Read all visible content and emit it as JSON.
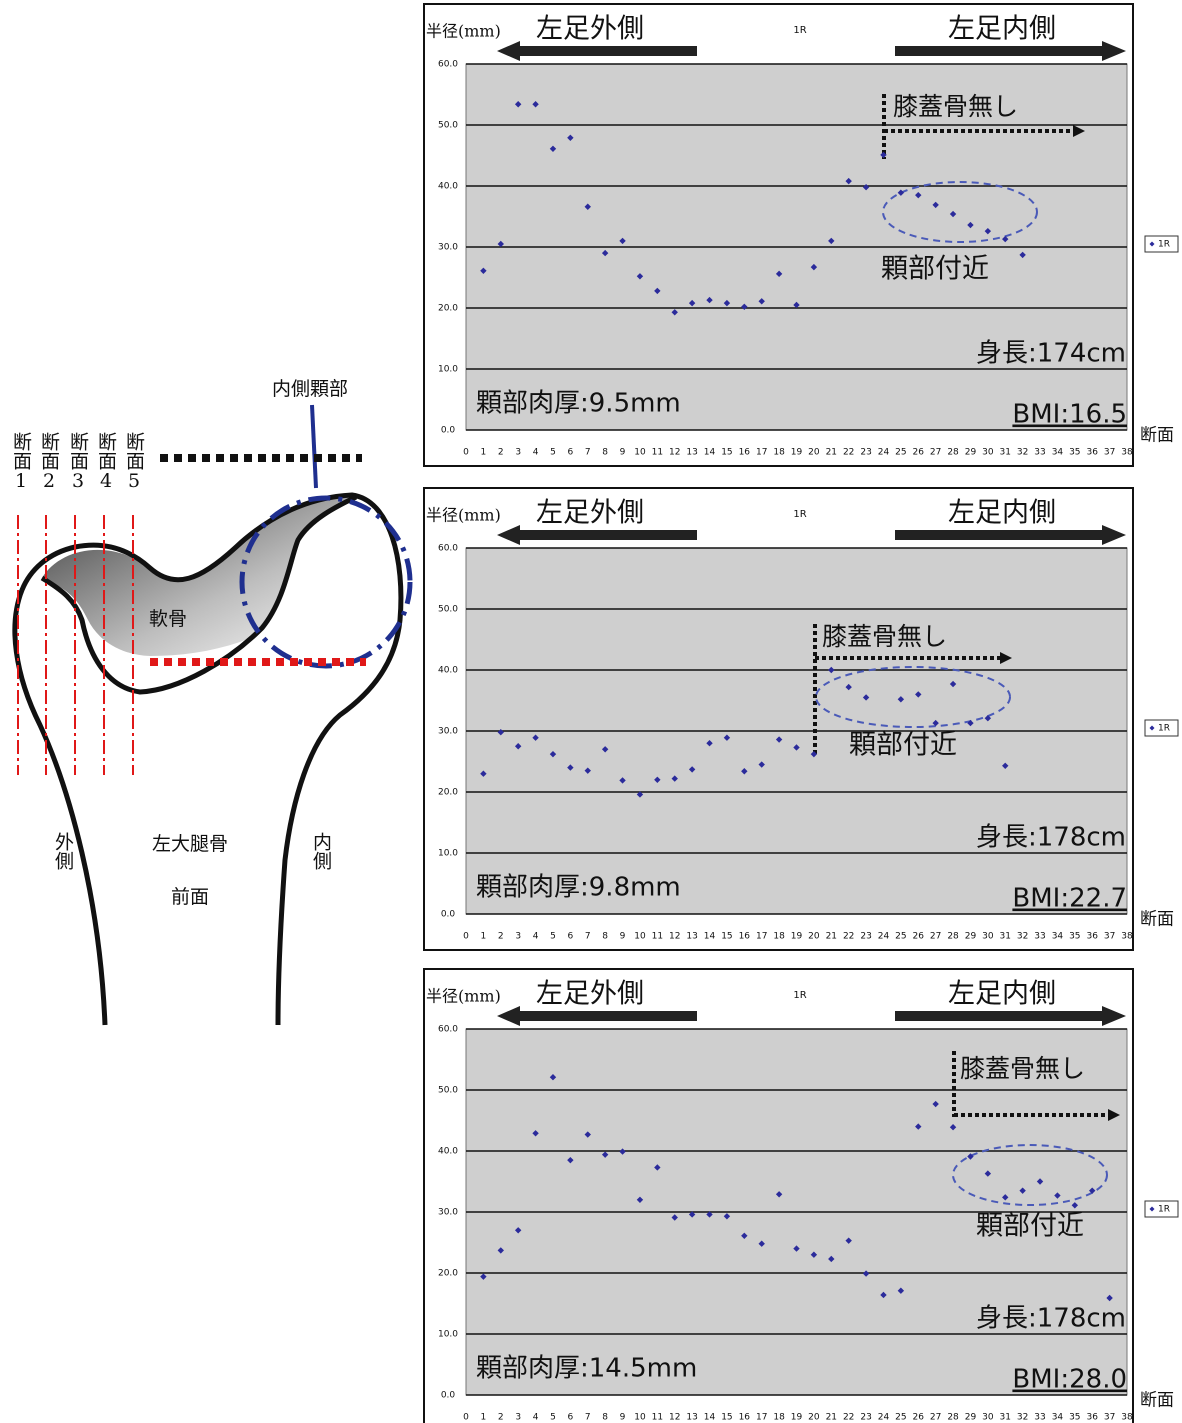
{
  "diagram": {
    "annotation": "内側顆部",
    "sections": [
      "断面1",
      "断面2",
      "断面3",
      "断面4",
      "断面5"
    ],
    "cartilage": "軟骨",
    "lateral": "外側",
    "medial": "内側",
    "bone": "左大腿骨",
    "view": "前面"
  },
  "chart_data": [
    {
      "type": "scatter",
      "title": "1R",
      "x_label": "断面",
      "y_label": "半径(mm)",
      "annotations": {
        "outer": "左足外側",
        "inner": "左足内側",
        "patella": "膝蓋骨無し",
        "condyle": "顆部付近",
        "height": "身長:174cm",
        "thickness": "顆部肉厚:9.5mm",
        "bmi": "BMI:16.5"
      },
      "x": [
        1,
        2,
        3,
        4,
        5,
        6,
        7,
        8,
        9,
        10,
        11,
        12,
        13,
        14,
        15,
        16,
        17,
        18,
        19,
        20,
        21,
        22,
        23,
        24,
        25,
        26,
        27,
        28,
        29,
        30,
        31,
        32
      ],
      "series": [
        {
          "name": "1R",
          "color": "#2b2b9b",
          "values": [
            26.1,
            30.5,
            53.4,
            53.4,
            46.1,
            47.9,
            36.6,
            29.0,
            31.0,
            25.2,
            22.8,
            19.3,
            20.8,
            21.3,
            20.8,
            20.2,
            21.1,
            25.6,
            20.5,
            26.7,
            31.0,
            40.8,
            39.8,
            45.1,
            38.9,
            38.5,
            36.9,
            35.4,
            33.6,
            32.6,
            31.3,
            28.7
          ]
        }
      ],
      "xlim": [
        0,
        38
      ],
      "xticks": [
        0,
        1,
        2,
        3,
        4,
        5,
        6,
        7,
        8,
        9,
        10,
        11,
        12,
        13,
        14,
        15,
        16,
        17,
        18,
        19,
        20,
        21,
        22,
        23,
        24,
        25,
        26,
        27,
        28,
        29,
        30,
        31,
        32,
        33,
        34,
        35,
        36,
        37,
        38
      ],
      "ylim": [
        0,
        60
      ],
      "yticks": [
        {
          "value": 0,
          "label": "0.0"
        },
        {
          "value": 10,
          "label": "10.0"
        },
        {
          "value": 20,
          "label": "20.0"
        },
        {
          "value": 30,
          "label": "30.0"
        },
        {
          "value": 40,
          "label": "40.0"
        },
        {
          "value": 50,
          "label": "50.0"
        },
        {
          "value": 60,
          "label": "60.0"
        }
      ],
      "grid": true,
      "legend": "right"
    },
    {
      "type": "scatter",
      "title": "1R",
      "x_label": "断面",
      "y_label": "半径(mm)",
      "annotations": {
        "outer": "左足外側",
        "inner": "左足内側",
        "patella": "膝蓋骨無し",
        "condyle": "顆部付近",
        "height": "身長:178cm",
        "thickness": "顆部肉厚:9.8mm",
        "bmi": "BMI:22.7"
      },
      "x": [
        1,
        2,
        3,
        4,
        5,
        6,
        7,
        8,
        9,
        10,
        11,
        12,
        13,
        14,
        15,
        16,
        17,
        18,
        19,
        20,
        21,
        22,
        23,
        25,
        26,
        27,
        28,
        29,
        30,
        31
      ],
      "series": [
        {
          "name": "1R",
          "color": "#2b2b9b",
          "values": [
            23.0,
            29.8,
            27.5,
            28.9,
            26.2,
            24.0,
            23.5,
            27.0,
            21.9,
            19.6,
            22.0,
            22.2,
            23.7,
            28.0,
            28.9,
            23.4,
            24.5,
            28.6,
            27.3,
            26.2,
            40.0,
            37.2,
            35.5,
            35.2,
            36.0,
            31.3,
            37.7,
            31.3,
            32.1,
            24.3
          ]
        }
      ],
      "xlim": [
        0,
        38
      ],
      "xticks": [
        0,
        1,
        2,
        3,
        4,
        5,
        6,
        7,
        8,
        9,
        10,
        11,
        12,
        13,
        14,
        15,
        16,
        17,
        18,
        19,
        20,
        21,
        22,
        23,
        24,
        25,
        26,
        27,
        28,
        29,
        30,
        31,
        32,
        33,
        34,
        35,
        36,
        37,
        38
      ],
      "ylim": [
        0,
        60
      ],
      "yticks": [
        {
          "value": 0,
          "label": "0.0"
        },
        {
          "value": 10,
          "label": "10.0"
        },
        {
          "value": 20,
          "label": "20.0"
        },
        {
          "value": 30,
          "label": "30.0"
        },
        {
          "value": 40,
          "label": "40.0"
        },
        {
          "value": 50,
          "label": "50.0"
        },
        {
          "value": 60,
          "label": "60.0"
        }
      ],
      "grid": true,
      "legend": "right"
    },
    {
      "type": "scatter",
      "title": "1R",
      "x_label": "断面",
      "y_label": "半径(mm)",
      "annotations": {
        "outer": "左足外側",
        "inner": "左足内側",
        "patella": "膝蓋骨無し",
        "condyle": "顆部付近",
        "height": "身長:178cm",
        "thickness": "顆部肉厚:14.5mm",
        "bmi": "BMI:28.0"
      },
      "x": [
        1,
        2,
        3,
        4,
        5,
        6,
        7,
        8,
        9,
        10,
        11,
        12,
        13,
        14,
        15,
        16,
        17,
        18,
        19,
        20,
        21,
        22,
        23,
        24,
        25,
        26,
        27,
        28,
        29,
        30,
        31,
        32,
        33,
        34,
        35,
        36,
        37
      ],
      "series": [
        {
          "name": "1R",
          "color": "#2b2b9b",
          "values": [
            19.4,
            23.7,
            27.0,
            42.9,
            52.1,
            38.5,
            42.7,
            39.4,
            39.9,
            32.0,
            37.3,
            29.1,
            29.6,
            29.6,
            29.3,
            26.1,
            24.8,
            32.9,
            24.0,
            23.0,
            22.3,
            25.3,
            19.9,
            16.4,
            17.1,
            44.0,
            47.7,
            43.9,
            39.1,
            36.3,
            32.4,
            33.5,
            35.0,
            32.7,
            31.1,
            33.5,
            15.9
          ]
        }
      ],
      "xlim": [
        0,
        38
      ],
      "xticks": [
        0,
        1,
        2,
        3,
        4,
        5,
        6,
        7,
        8,
        9,
        10,
        11,
        12,
        13,
        14,
        15,
        16,
        17,
        18,
        19,
        20,
        21,
        22,
        23,
        24,
        25,
        26,
        27,
        28,
        29,
        30,
        31,
        32,
        33,
        34,
        35,
        36,
        37,
        38
      ],
      "ylim": [
        0,
        60
      ],
      "yticks": [
        {
          "value": 0,
          "label": "0.0"
        },
        {
          "value": 10,
          "label": "10.0"
        },
        {
          "value": 20,
          "label": "20.0"
        },
        {
          "value": 30,
          "label": "30.0"
        },
        {
          "value": 40,
          "label": "40.0"
        },
        {
          "value": 50,
          "label": "50.0"
        },
        {
          "value": 60,
          "label": "60.0"
        }
      ],
      "grid": true,
      "legend": "right"
    }
  ]
}
